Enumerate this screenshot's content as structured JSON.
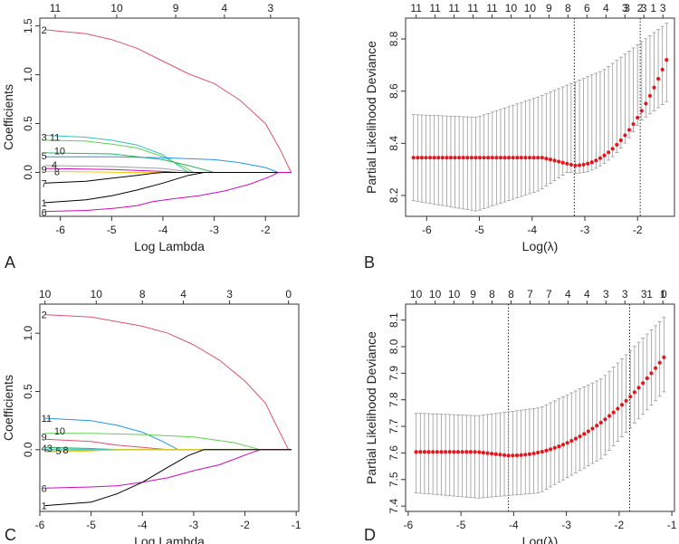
{
  "chart_data": [
    {
      "panel": "A",
      "type": "line",
      "xlabel": "Log Lambda",
      "ylabel": "Coefficients",
      "xlim": [
        -6.4,
        -1.35
      ],
      "ylim": [
        -0.45,
        1.58
      ],
      "xticks": [
        -6,
        -5,
        -4,
        -3,
        -2
      ],
      "yticks": [
        0.0,
        0.5,
        1.0,
        1.5
      ],
      "yticklabels": [
        "0.0",
        "0.5",
        "1.0",
        "1.5"
      ],
      "top_axis": {
        "at": [
          -6.1,
          -4.9,
          -3.75,
          -2.8,
          -1.9
        ],
        "labels": [
          "11",
          "10",
          "9",
          "4",
          "3"
        ]
      },
      "series": [
        {
          "name": "2",
          "color": "#df536b",
          "x": [
            -6.3,
            -5.5,
            -5.0,
            -4.5,
            -4.0,
            -3.5,
            -3.0,
            -2.5,
            -2.0,
            -1.7,
            -1.5
          ],
          "y": [
            1.46,
            1.42,
            1.36,
            1.27,
            1.14,
            1.01,
            0.91,
            0.74,
            0.5,
            0.22,
            0.0
          ]
        },
        {
          "name": "11",
          "color": "#2ec4b6",
          "x": [
            -6.3,
            -5.5,
            -5.0,
            -4.5,
            -4.0,
            -3.7,
            -3.5
          ],
          "y": [
            0.38,
            0.36,
            0.33,
            0.28,
            0.18,
            0.07,
            0.0
          ]
        },
        {
          "name": "3",
          "color": "#61d04f",
          "x": [
            -6.3,
            -5.5,
            -5.0,
            -4.5,
            -4.0,
            -3.6,
            -3.4
          ],
          "y": [
            0.33,
            0.32,
            0.29,
            0.25,
            0.16,
            0.06,
            0.0
          ]
        },
        {
          "name": "10",
          "color": "#28b463",
          "x": [
            -6.3,
            -5.0,
            -4.0,
            -3.5,
            -3.0
          ],
          "y": [
            0.2,
            0.19,
            0.13,
            0.07,
            0.0
          ]
        },
        {
          "name": "5",
          "color": "#2297e6",
          "x": [
            -6.3,
            -5.0,
            -4.0,
            -3.0,
            -2.5,
            -2.0,
            -1.75
          ],
          "y": [
            0.16,
            0.16,
            0.15,
            0.13,
            0.1,
            0.05,
            0.0
          ]
        },
        {
          "name": "4",
          "color": "#9e9e9e",
          "x": [
            -6.3,
            -5.0,
            -4.0,
            -3.4
          ],
          "y": [
            0.07,
            0.06,
            0.04,
            0.0
          ]
        },
        {
          "name": "9",
          "color": "#cd0bbc",
          "x": [
            -6.3,
            -5.0,
            -4.0,
            -3.7
          ],
          "y": [
            0.04,
            0.03,
            0.01,
            0.0
          ]
        },
        {
          "name": "8",
          "color": "#f5c710",
          "x": [
            -6.3,
            -5.5,
            -4.8
          ],
          "y": [
            0.01,
            0.005,
            0.0
          ]
        },
        {
          "name": "7",
          "color": "#000000",
          "x": [
            -6.3,
            -5.5,
            -5.0,
            -4.5,
            -4.2,
            -4.0
          ],
          "y": [
            -0.11,
            -0.09,
            -0.06,
            -0.03,
            -0.01,
            0.0
          ]
        },
        {
          "name": "1",
          "color": "#000000",
          "x": [
            -6.3,
            -5.5,
            -5.0,
            -4.5,
            -4.0,
            -3.5,
            -3.2
          ],
          "y": [
            -0.31,
            -0.28,
            -0.24,
            -0.18,
            -0.11,
            -0.03,
            0.0
          ]
        },
        {
          "name": "6",
          "color": "#cd0bbc",
          "x": [
            -6.3,
            -5.5,
            -5.0,
            -4.5,
            -4.2,
            -3.8,
            -3.3,
            -2.8,
            -2.3,
            -1.9,
            -1.75
          ],
          "y": [
            -0.4,
            -0.39,
            -0.37,
            -0.34,
            -0.3,
            -0.27,
            -0.24,
            -0.19,
            -0.12,
            -0.04,
            0.0
          ]
        }
      ],
      "labels": [
        {
          "text": "2",
          "x": -6.3,
          "y": 1.46
        },
        {
          "text": "3 11",
          "x": -6.3,
          "y": 0.36
        },
        {
          "text": "10",
          "x": -6.05,
          "y": 0.22
        },
        {
          "text": "5",
          "x": -6.3,
          "y": 0.17
        },
        {
          "text": "4",
          "x": -6.1,
          "y": 0.08
        },
        {
          "text": "9",
          "x": -6.3,
          "y": 0.03
        },
        {
          "text": "8",
          "x": -6.05,
          "y": 0.01
        },
        {
          "text": "7",
          "x": -6.3,
          "y": -0.11
        },
        {
          "text": "1",
          "x": -6.3,
          "y": -0.31
        },
        {
          "text": "6",
          "x": -6.3,
          "y": -0.41
        }
      ],
      "corner_label": "A"
    },
    {
      "panel": "B",
      "type": "scatter",
      "xlabel": "Log(λ)",
      "ylabel": "Partial Likelihood Deviance",
      "xlim": [
        -6.4,
        -1.3
      ],
      "ylim": [
        8.12,
        8.88
      ],
      "xticks": [
        -6,
        -5,
        -4,
        -3,
        -2
      ],
      "yticks": [
        8.2,
        8.4,
        8.6,
        8.8
      ],
      "yticklabels": [
        "8.2",
        "8.4",
        "8.6",
        "8.8"
      ],
      "top_axis": {
        "at": [
          -6.2,
          -5.84,
          -5.48,
          -5.12,
          -4.76,
          -4.4,
          -4.04,
          -3.68,
          -3.32,
          -2.96,
          -2.6,
          -2.24,
          -1.88,
          -1.52
        ],
        "labels": [
          "11",
          "11",
          "11",
          "11",
          "11",
          "10",
          "10",
          "9",
          "8",
          "6",
          "4",
          "3",
          "3",
          "3"
        ]
      },
      "top_axis_extra": {
        "at": [
          -2.2,
          -1.95,
          -1.7,
          -1.45
        ],
        "labels": [
          "3",
          "2",
          "1",
          ""
        ]
      },
      "points_x_start": -6.25,
      "points_x_end": -1.45,
      "points_count": 62,
      "points_y_plateau": 8.345,
      "min_x": -3.2,
      "min_y": 8.315,
      "end_y": 8.72,
      "err_low": [
        8.18,
        8.14,
        8.22,
        8.38,
        8.56
      ],
      "err_high": [
        8.51,
        8.5,
        8.58,
        8.68,
        8.86
      ],
      "vlines": [
        -3.2,
        -1.95
      ],
      "corner_label": "B"
    },
    {
      "panel": "C",
      "type": "line",
      "xlabel": "Log Lambda",
      "ylabel": "Coefficients",
      "xlim": [
        -6.0,
        -0.95
      ],
      "ylim": [
        -0.53,
        1.25
      ],
      "xticks": [
        -6,
        -5,
        -4,
        -3,
        -2,
        -1
      ],
      "yticks": [
        0.0,
        0.5,
        1.0
      ],
      "yticklabels": [
        "0.0",
        "0.5",
        "1.0"
      ],
      "top_axis": {
        "at": [
          -5.9,
          -4.9,
          -4.0,
          -3.2,
          -2.3,
          -1.15
        ],
        "labels": [
          "10",
          "10",
          "8",
          "4",
          "3",
          "0"
        ]
      },
      "series": [
        {
          "name": "2",
          "color": "#df536b",
          "x": [
            -5.9,
            -5.0,
            -4.5,
            -4.0,
            -3.5,
            -3.0,
            -2.5,
            -2.0,
            -1.6,
            -1.4,
            -1.15
          ],
          "y": [
            1.16,
            1.14,
            1.1,
            1.06,
            1.0,
            0.9,
            0.77,
            0.59,
            0.4,
            0.22,
            0.0
          ]
        },
        {
          "name": "11",
          "color": "#2297e6",
          "x": [
            -5.9,
            -5.0,
            -4.5,
            -4.0,
            -3.6,
            -3.3
          ],
          "y": [
            0.27,
            0.25,
            0.21,
            0.15,
            0.07,
            0.0
          ]
        },
        {
          "name": "10",
          "color": "#61d04f",
          "x": [
            -5.9,
            -5.0,
            -4.0,
            -3.0,
            -2.2,
            -1.7
          ],
          "y": [
            0.14,
            0.14,
            0.13,
            0.11,
            0.06,
            0.0
          ]
        },
        {
          "name": "9",
          "color": "#df536b",
          "x": [
            -5.9,
            -5.0,
            -4.5,
            -4.0,
            -3.5
          ],
          "y": [
            0.09,
            0.07,
            0.04,
            0.02,
            0.0
          ]
        },
        {
          "name": "4",
          "color": "#28b463",
          "x": [
            -5.9,
            -5.0,
            -4.5
          ],
          "y": [
            0.02,
            0.01,
            0.0
          ]
        },
        {
          "name": "3",
          "color": "#2ec4b6",
          "x": [
            -5.9,
            -4.8,
            -3.5
          ],
          "y": [
            0.005,
            0.003,
            0.0
          ]
        },
        {
          "name": "5",
          "color": "#9e9e9e",
          "x": [
            -5.9,
            -5.0,
            -4.2
          ],
          "y": [
            -0.01,
            -0.005,
            0.0
          ]
        },
        {
          "name": "8",
          "color": "#f5c710",
          "x": [
            -5.9,
            -5.0,
            -4.5
          ],
          "y": [
            -0.02,
            -0.01,
            0.0
          ]
        },
        {
          "name": "6",
          "color": "#cd0bbc",
          "x": [
            -5.9,
            -5.0,
            -4.5,
            -4.0,
            -3.5,
            -3.0,
            -2.5,
            -2.2,
            -1.9,
            -1.7
          ],
          "y": [
            -0.33,
            -0.32,
            -0.31,
            -0.28,
            -0.24,
            -0.18,
            -0.13,
            -0.08,
            -0.03,
            0.0
          ]
        },
        {
          "name": "1",
          "color": "#000000",
          "x": [
            -5.9,
            -5.0,
            -4.5,
            -4.0,
            -3.5,
            -3.1,
            -2.8
          ],
          "y": [
            -0.48,
            -0.45,
            -0.38,
            -0.28,
            -0.15,
            -0.05,
            0.0
          ]
        }
      ],
      "labels": [
        {
          "text": "2",
          "x": -5.9,
          "y": 1.16
        },
        {
          "text": "11",
          "x": -5.9,
          "y": 0.27
        },
        {
          "text": "10",
          "x": -5.65,
          "y": 0.16
        },
        {
          "text": "9",
          "x": -5.9,
          "y": 0.11
        },
        {
          "text": "43",
          "x": -5.9,
          "y": 0.015
        },
        {
          "text": "5",
          "x": -5.62,
          "y": -0.01
        },
        {
          "text": "8",
          "x": -5.48,
          "y": 0.0
        },
        {
          "text": "6",
          "x": -5.9,
          "y": -0.33
        },
        {
          "text": "1",
          "x": -5.9,
          "y": -0.48
        }
      ],
      "corner_label": "C"
    },
    {
      "panel": "D",
      "type": "scatter",
      "xlabel": "Log(λ)",
      "ylabel": "Partial Likelihood Deviance",
      "xlim": [
        -6.05,
        -0.95
      ],
      "ylim": [
        7.38,
        8.16
      ],
      "xticks": [
        -6,
        -5,
        -4,
        -3,
        -2,
        -1
      ],
      "yticks": [
        7.4,
        7.5,
        7.6,
        7.7,
        7.8,
        7.9,
        8.0,
        8.1
      ],
      "yticklabels": [
        "7.4",
        "7.5",
        "7.6",
        "7.7",
        "7.8",
        "7.9",
        "8.0",
        "8.1"
      ],
      "top_axis": {
        "at": [
          -5.85,
          -5.49,
          -5.13,
          -4.77,
          -4.41,
          -4.05,
          -3.69,
          -3.33,
          -2.97,
          -2.61,
          -2.25,
          -1.89,
          -1.53,
          -1.17
        ],
        "labels": [
          "10",
          "10",
          "10",
          "9",
          "8",
          "8",
          "7",
          "7",
          "4",
          "4",
          "3",
          "3",
          "3",
          "1"
        ]
      },
      "top_axis_extra": {
        "at": [
          -1.42,
          -1.15
        ],
        "labels": [
          "1",
          "0"
        ]
      },
      "points_x_start": -5.85,
      "points_x_end": -1.15,
      "points_count": 60,
      "points_y_plateau": 7.604,
      "min_x": -4.1,
      "min_y": 7.59,
      "end_y": 7.96,
      "err_low": [
        7.45,
        7.43,
        7.45,
        7.58,
        7.83
      ],
      "err_high": [
        7.75,
        7.74,
        7.77,
        7.88,
        8.11
      ],
      "vlines": [
        -4.1,
        -1.8
      ],
      "corner_label": "D"
    }
  ]
}
